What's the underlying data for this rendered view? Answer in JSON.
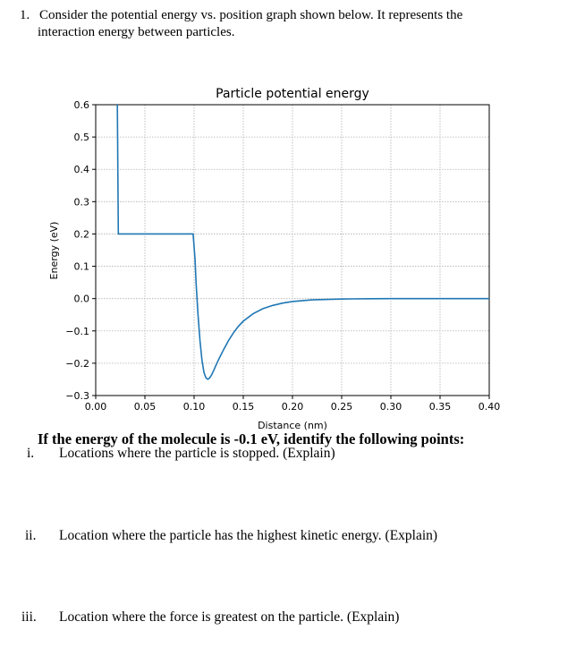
{
  "question": {
    "number": "1.",
    "text_line1": "Consider the potential energy vs. position graph shown below. It represents the",
    "text_line2": "interaction energy between particles."
  },
  "chart_data": {
    "type": "line",
    "title": "Particle potential energy",
    "xlabel": "Distance (nm)",
    "ylabel": "Energy (eV)",
    "xlim": [
      0.0,
      0.4
    ],
    "ylim": [
      -0.3,
      0.6
    ],
    "xticks": [
      "0.00",
      "0.05",
      "0.10",
      "0.15",
      "0.20",
      "0.25",
      "0.30",
      "0.35",
      "0.40"
    ],
    "yticks": [
      "0.6",
      "0.5",
      "0.4",
      "0.3",
      "0.2",
      "0.1",
      "0.0",
      "−0.1",
      "−0.2",
      "−0.3"
    ],
    "grid": true,
    "line_color": "#1f77b4",
    "series": [
      {
        "x": [
          0.022,
          0.023,
          0.025,
          0.099,
          0.101,
          0.102,
          0.104,
          0.106,
          0.108,
          0.11,
          0.112,
          0.114,
          0.116,
          0.118,
          0.12,
          0.122,
          0.125,
          0.13,
          0.135,
          0.14,
          0.145,
          0.15,
          0.16,
          0.17,
          0.18,
          0.19,
          0.2,
          0.22,
          0.24,
          0.26,
          0.28,
          0.3,
          0.33,
          0.36,
          0.4
        ],
        "y": [
          0.6,
          0.2,
          0.2,
          0.2,
          0.12,
          0.05,
          -0.05,
          -0.13,
          -0.19,
          -0.228,
          -0.245,
          -0.25,
          -0.245,
          -0.235,
          -0.222,
          -0.208,
          -0.188,
          -0.158,
          -0.13,
          -0.106,
          -0.086,
          -0.07,
          -0.047,
          -0.031,
          -0.021,
          -0.014,
          -0.009,
          -0.004,
          -0.002,
          -0.001,
          -0.0005,
          0.0,
          0.0,
          0.0,
          0.0
        ]
      }
    ]
  },
  "prompt": "If the energy of the molecule is -0.1 eV, identify the following points:",
  "items": [
    {
      "label": "i.",
      "text": "Locations where the particle is stopped. (Explain)"
    },
    {
      "label": "ii.",
      "text": "Location where the particle has the highest kinetic energy. (Explain)"
    },
    {
      "label": "iii.",
      "text": "Location where the force is greatest on the particle. (Explain)"
    }
  ]
}
